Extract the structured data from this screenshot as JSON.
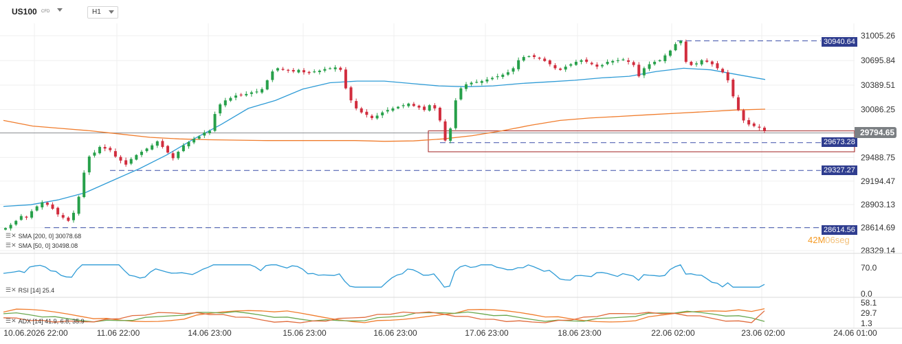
{
  "toolbar": {
    "symbol": "US100",
    "symbol_type": "CFD",
    "timeframe": "H1"
  },
  "colors": {
    "bull": "#27a04a",
    "bear": "#d12d3e",
    "sma200": "#f07c2c",
    "sma50": "#2e9bd6",
    "rsi": "#2e9bd6",
    "level": "#3b4fa8",
    "box": "#a01f1f",
    "adx": "#f07c2c",
    "plus_di": "#6aa84f",
    "minus_di": "#e06b3c"
  },
  "price_axis": [
    "31005.26",
    "30695.84",
    "30389.51",
    "30086.25",
    "29794.65",
    "29488.75",
    "29194.47",
    "28903.13",
    "28614.69",
    "28329.14"
  ],
  "rsi_axis": [
    "70.0",
    "0.0"
  ],
  "adx_axis": [
    "58.1",
    "29.7",
    "1.3"
  ],
  "x_axis": [
    "10.06.2026 22:00",
    "11.06 22:00",
    "14.06 23:00",
    "15.06 23:00",
    "16.06 23:00",
    "17.06 23:00",
    "18.06 23:00",
    "22.06 02:00",
    "23.06 02:00",
    "24.06 01:00"
  ],
  "levels": {
    "l1": "30940.64",
    "l2": "29673.28",
    "l3": "29327.27",
    "l4": "28614.56",
    "current": "29794.65"
  },
  "indicators": {
    "sma200": "SMA [200, 0] 30078.68",
    "sma50": "SMA [50, 0] 30498.08",
    "rsi": "RSI [14] 25.4",
    "adx": "ADX [14] 41.9, 6.8, 35.9"
  },
  "timer": {
    "minutes": "42M",
    "seconds": "06seg"
  },
  "chart_data": {
    "type": "candlestick",
    "price_ylim": [
      28329.14,
      31005.26
    ],
    "closes": [
      28610,
      28650,
      28700,
      28760,
      28740,
      28820,
      28880,
      28930,
      28900,
      28850,
      28780,
      28740,
      28700,
      28800,
      29000,
      29300,
      29500,
      29550,
      29620,
      29600,
      29580,
      29500,
      29450,
      29400,
      29470,
      29520,
      29560,
      29600,
      29640,
      29690,
      29620,
      29550,
      29480,
      29560,
      29640,
      29680,
      29720,
      29750,
      29800,
      29820,
      30030,
      30150,
      30200,
      30230,
      30260,
      30270,
      30280,
      30300,
      30310,
      30340,
      30450,
      30560,
      30600,
      30580,
      30570,
      30560,
      30580,
      30550,
      30540,
      30560,
      30570,
      30590,
      30600,
      30610,
      30580,
      30350,
      30200,
      30100,
      30050,
      30020,
      29980,
      30010,
      30050,
      30080,
      30100,
      30120,
      30140,
      30160,
      30130,
      30110,
      30080,
      30140,
      30100,
      29950,
      29700,
      29850,
      30200,
      30350,
      30400,
      30420,
      30430,
      30440,
      30460,
      30480,
      30500,
      30520,
      30550,
      30600,
      30700,
      30740,
      30750,
      30740,
      30720,
      30690,
      30650,
      30600,
      30580,
      30620,
      30650,
      30680,
      30700,
      30680,
      30650,
      30620,
      30640,
      30680,
      30690,
      30700,
      30710,
      30680,
      30640,
      30500,
      30600,
      30650,
      30680,
      30700,
      30760,
      30820,
      30900,
      30940,
      30680,
      30640,
      30660,
      30700,
      30680,
      30650,
      30600,
      30550,
      30450,
      30250,
      30080,
      29950,
      29900,
      29880,
      29860,
      29820
    ],
    "sma200": [
      29950,
      29880,
      29850,
      29820,
      29780,
      29740,
      29720,
      29710,
      29705,
      29700,
      29700,
      29700,
      29700,
      29690,
      29695,
      29720,
      29760,
      29820,
      29890,
      29950,
      29980,
      30000,
      30020,
      30040,
      30060,
      30080,
      30090
    ],
    "sma50": [
      28880,
      28900,
      28960,
      29050,
      29200,
      29350,
      29520,
      29720,
      29900,
      30100,
      30200,
      30340,
      30420,
      30440,
      30440,
      30410,
      30380,
      30370,
      30380,
      30410,
      30430,
      30450,
      30480,
      30500,
      30560,
      30600,
      30580,
      30520,
      30460
    ],
    "rsi_last": 25.4,
    "adx_last": [
      41.9,
      6.8,
      35.9
    ]
  }
}
